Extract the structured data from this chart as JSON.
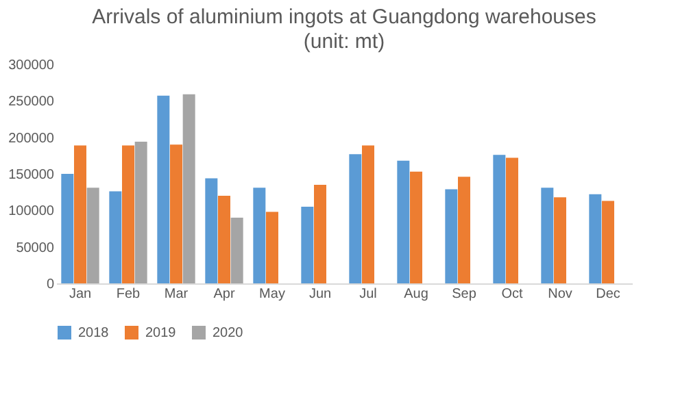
{
  "chart_data": {
    "type": "bar",
    "title": "Arrivals of aluminium ingots at Guangdong warehouses",
    "subtitle": "(unit: mt)",
    "categories": [
      "Jan",
      "Feb",
      "Mar",
      "Apr",
      "May",
      "Jun",
      "Jul",
      "Aug",
      "Sep",
      "Oct",
      "Nov",
      "Dec"
    ],
    "series": [
      {
        "name": "2018",
        "color": "#5b9bd5",
        "values": [
          150000,
          126000,
          257000,
          144000,
          131000,
          105000,
          177000,
          168000,
          129000,
          176000,
          131000,
          122000
        ]
      },
      {
        "name": "2019",
        "color": "#ed7d31",
        "values": [
          189000,
          189000,
          190000,
          120000,
          98000,
          135000,
          189000,
          153000,
          146000,
          172000,
          118000,
          113000
        ]
      },
      {
        "name": "2020",
        "color": "#a5a5a5",
        "values": [
          131000,
          194000,
          259000,
          90000,
          null,
          null,
          null,
          null,
          null,
          null,
          null,
          null
        ]
      }
    ],
    "ylim": [
      0,
      300000
    ],
    "yticks": [
      0,
      50000,
      100000,
      150000,
      200000,
      250000,
      300000
    ],
    "grid": false,
    "legend": "bottom"
  }
}
